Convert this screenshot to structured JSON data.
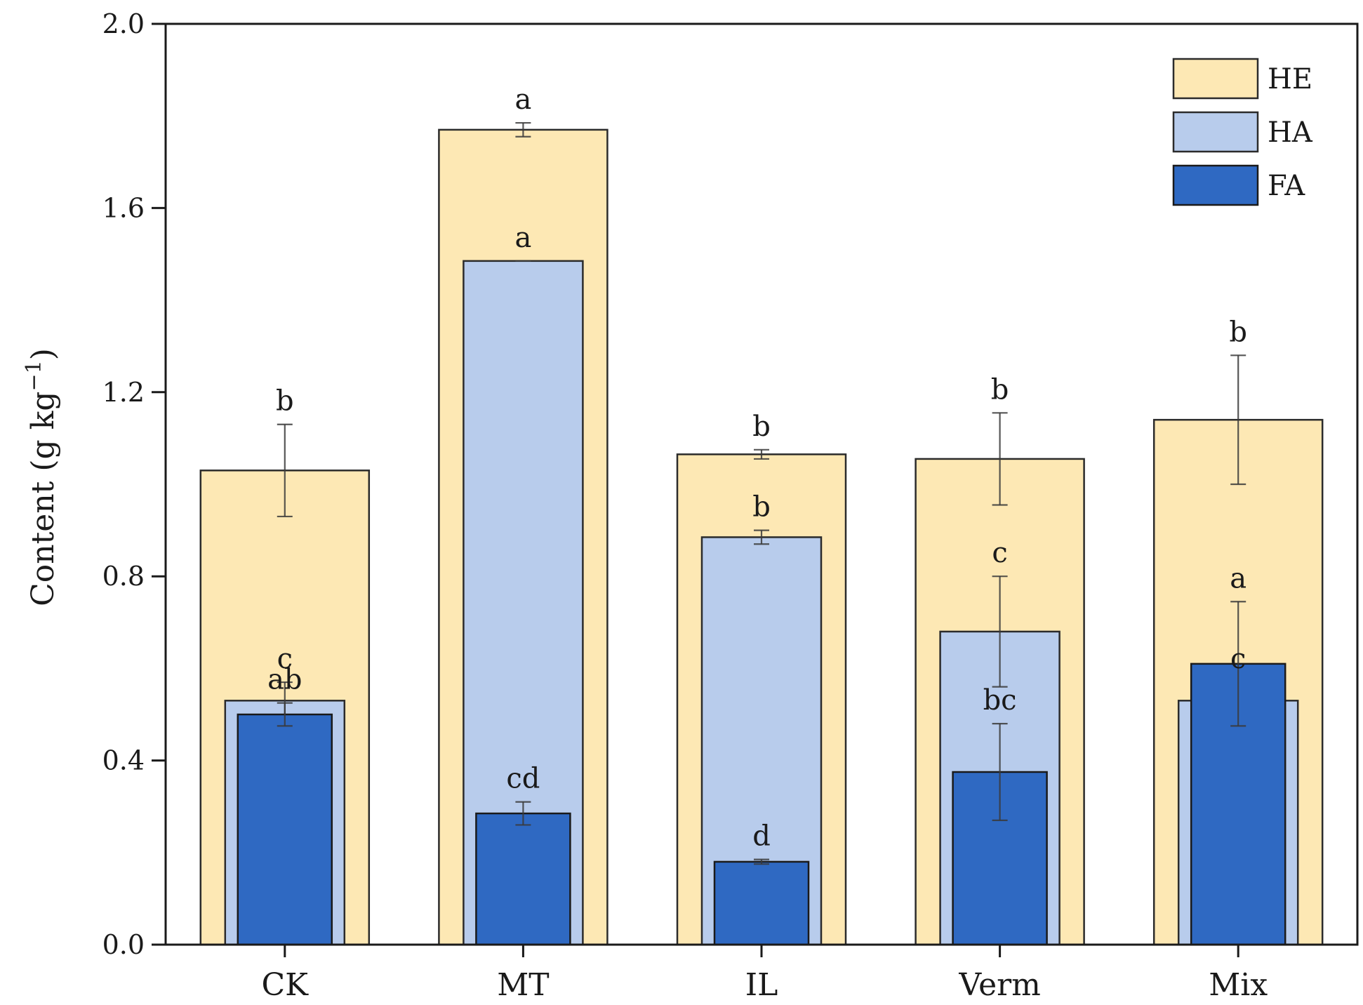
{
  "chart_data": {
    "type": "bar",
    "title": "",
    "xlabel": "",
    "ylabel": "Content (g kg",
    "ylabel_superscript": "−1",
    "ylabel_close": ")",
    "ylim": [
      0,
      2.0
    ],
    "yticks": [
      "0.0",
      "0.4",
      "0.8",
      "1.2",
      "1.6",
      "2.0"
    ],
    "grid": false,
    "legend_position": "top-right",
    "categories": [
      "CK",
      "MT",
      "IL",
      "Verm",
      "Mix"
    ],
    "series": [
      {
        "name": "HE",
        "color": "#fde8b4",
        "values": [
          1.03,
          1.77,
          1.065,
          1.055,
          1.14
        ],
        "errors": [
          0.1,
          0.015,
          0.01,
          0.1,
          0.14
        ],
        "labels": [
          "b",
          "a",
          "b",
          "b",
          "b"
        ]
      },
      {
        "name": "HA",
        "color": "#b8ccec",
        "values": [
          0.53,
          1.485,
          0.885,
          0.68,
          0.53
        ],
        "errors": [
          0.04,
          0.0,
          0.015,
          0.12,
          0.04
        ],
        "labels": [
          "c",
          "a",
          "b",
          "c",
          "c"
        ]
      },
      {
        "name": "FA",
        "color": "#2f69c2",
        "values": [
          0.5,
          0.285,
          0.18,
          0.375,
          0.61
        ],
        "errors": [
          0.025,
          0.025,
          0.005,
          0.105,
          0.135
        ],
        "labels": [
          "ab",
          "cd",
          "d",
          "bc",
          "a"
        ]
      }
    ]
  }
}
